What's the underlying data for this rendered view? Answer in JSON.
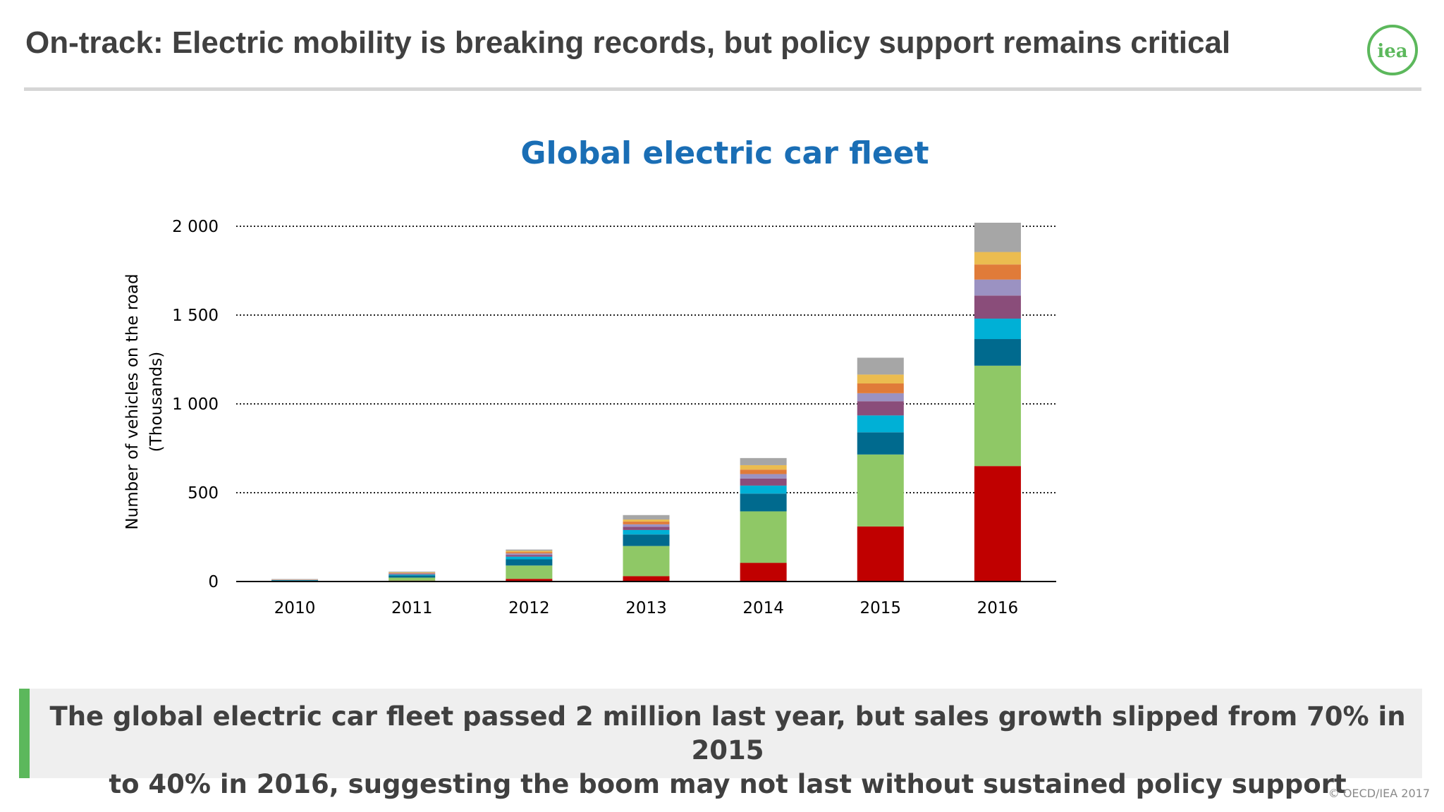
{
  "slide": {
    "title": "On-track: Electric mobility is breaking records, but policy support remains critical",
    "logo_text": "iea",
    "callout_line1": "The global electric car fleet passed 2 million last year, but sales growth slipped from 70% in 2015",
    "callout_line2": "to 40% in 2016, suggesting the boom may not last without sustained policy support",
    "copyright": "© OECD/IEA 2017"
  },
  "colors": {
    "title_text": "#404040",
    "chart_title": "#1a6eb5",
    "callout_accent": "#5cb85c",
    "logo_green": "#5cb85c"
  },
  "chart_data": {
    "type": "bar",
    "stacked": true,
    "title": "Global electric car fleet",
    "ylabel_line1": "Number of vehicles on the road",
    "ylabel_line2": "(Thousands)",
    "xlabel": "",
    "ylim": [
      0,
      2000
    ],
    "yticks": [
      0,
      500,
      1000,
      1500,
      2000
    ],
    "ytick_labels": [
      "0",
      "500",
      "1 000",
      "1 500",
      "2 000"
    ],
    "grid": "horizontal dotted",
    "legend": "none",
    "categories": [
      "2010",
      "2011",
      "2012",
      "2013",
      "2014",
      "2015",
      "2016"
    ],
    "series": [
      {
        "color": "#c00000",
        "values": [
          1,
          5,
          15,
          30,
          105,
          310,
          650
        ]
      },
      {
        "color": "#8fc866",
        "values": [
          3,
          17,
          75,
          170,
          290,
          405,
          565
        ]
      },
      {
        "color": "#006a8e",
        "values": [
          3,
          12,
          35,
          65,
          100,
          125,
          150
        ]
      },
      {
        "color": "#00b0d6",
        "values": [
          1,
          5,
          15,
          25,
          45,
          95,
          115
        ]
      },
      {
        "color": "#8a4d7a",
        "values": [
          1,
          4,
          10,
          18,
          40,
          80,
          130
        ]
      },
      {
        "color": "#9b92c2",
        "values": [
          1,
          3,
          8,
          14,
          25,
          45,
          90
        ]
      },
      {
        "color": "#e07b39",
        "values": [
          1,
          3,
          8,
          15,
          25,
          55,
          85
        ]
      },
      {
        "color": "#ebbc50",
        "values": [
          1,
          3,
          7,
          12,
          25,
          50,
          70
        ]
      },
      {
        "color": "#a6a6a6",
        "values": [
          2,
          4,
          7,
          25,
          40,
          95,
          165
        ]
      }
    ]
  }
}
